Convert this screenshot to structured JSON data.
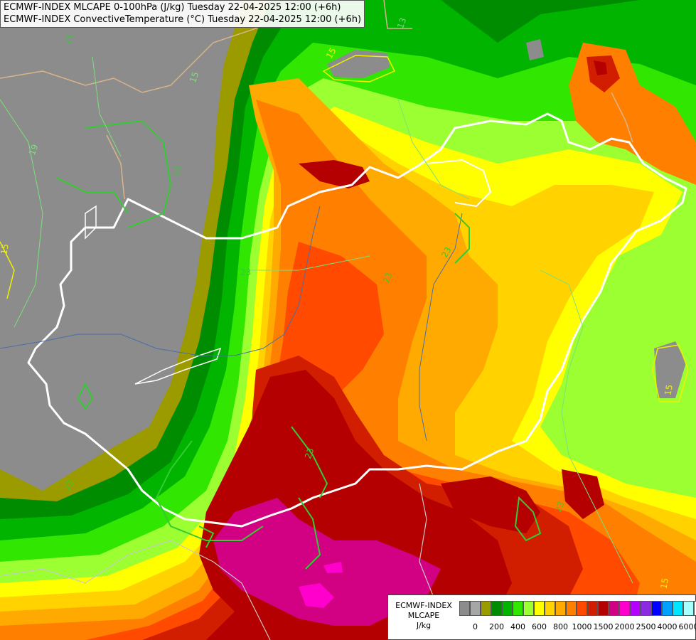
{
  "titles": {
    "line1": "ECMWF-INDEX MLCAPE 0-100hPa (J/kg) Tuesday 22-04-2025 12:00 (+6h)",
    "line2": "ECMWF-INDEX ConvectiveTemperature (°C) Tuesday 22-04-2025 12:00 (+6h)"
  },
  "legend": {
    "line1": "ECMWF-INDEX",
    "line2": "MLCAPE",
    "line3": "J/kg",
    "colors": [
      "#8c8c8c",
      "#a6a6a6",
      "#9b9b00",
      "#008c00",
      "#00b400",
      "#31e600",
      "#9bff31",
      "#ffff00",
      "#ffd200",
      "#ffaa00",
      "#ff7f00",
      "#ff4a00",
      "#d21e00",
      "#b40000",
      "#d20082",
      "#ff00cc",
      "#b400ff",
      "#8a2be2",
      "#0000ff",
      "#00a0ff",
      "#00e6ff",
      "#aaffff",
      "#ffffff"
    ],
    "ticks": [
      "0",
      "200",
      "400",
      "600",
      "800",
      "1000",
      "1500",
      "2000",
      "2500",
      "4000",
      "6000"
    ]
  },
  "contour_labels": [
    "21",
    "19",
    "15",
    "13",
    "15",
    "23",
    "23",
    "23",
    "23",
    "23",
    "23",
    "15",
    "15",
    "15",
    "23"
  ]
}
